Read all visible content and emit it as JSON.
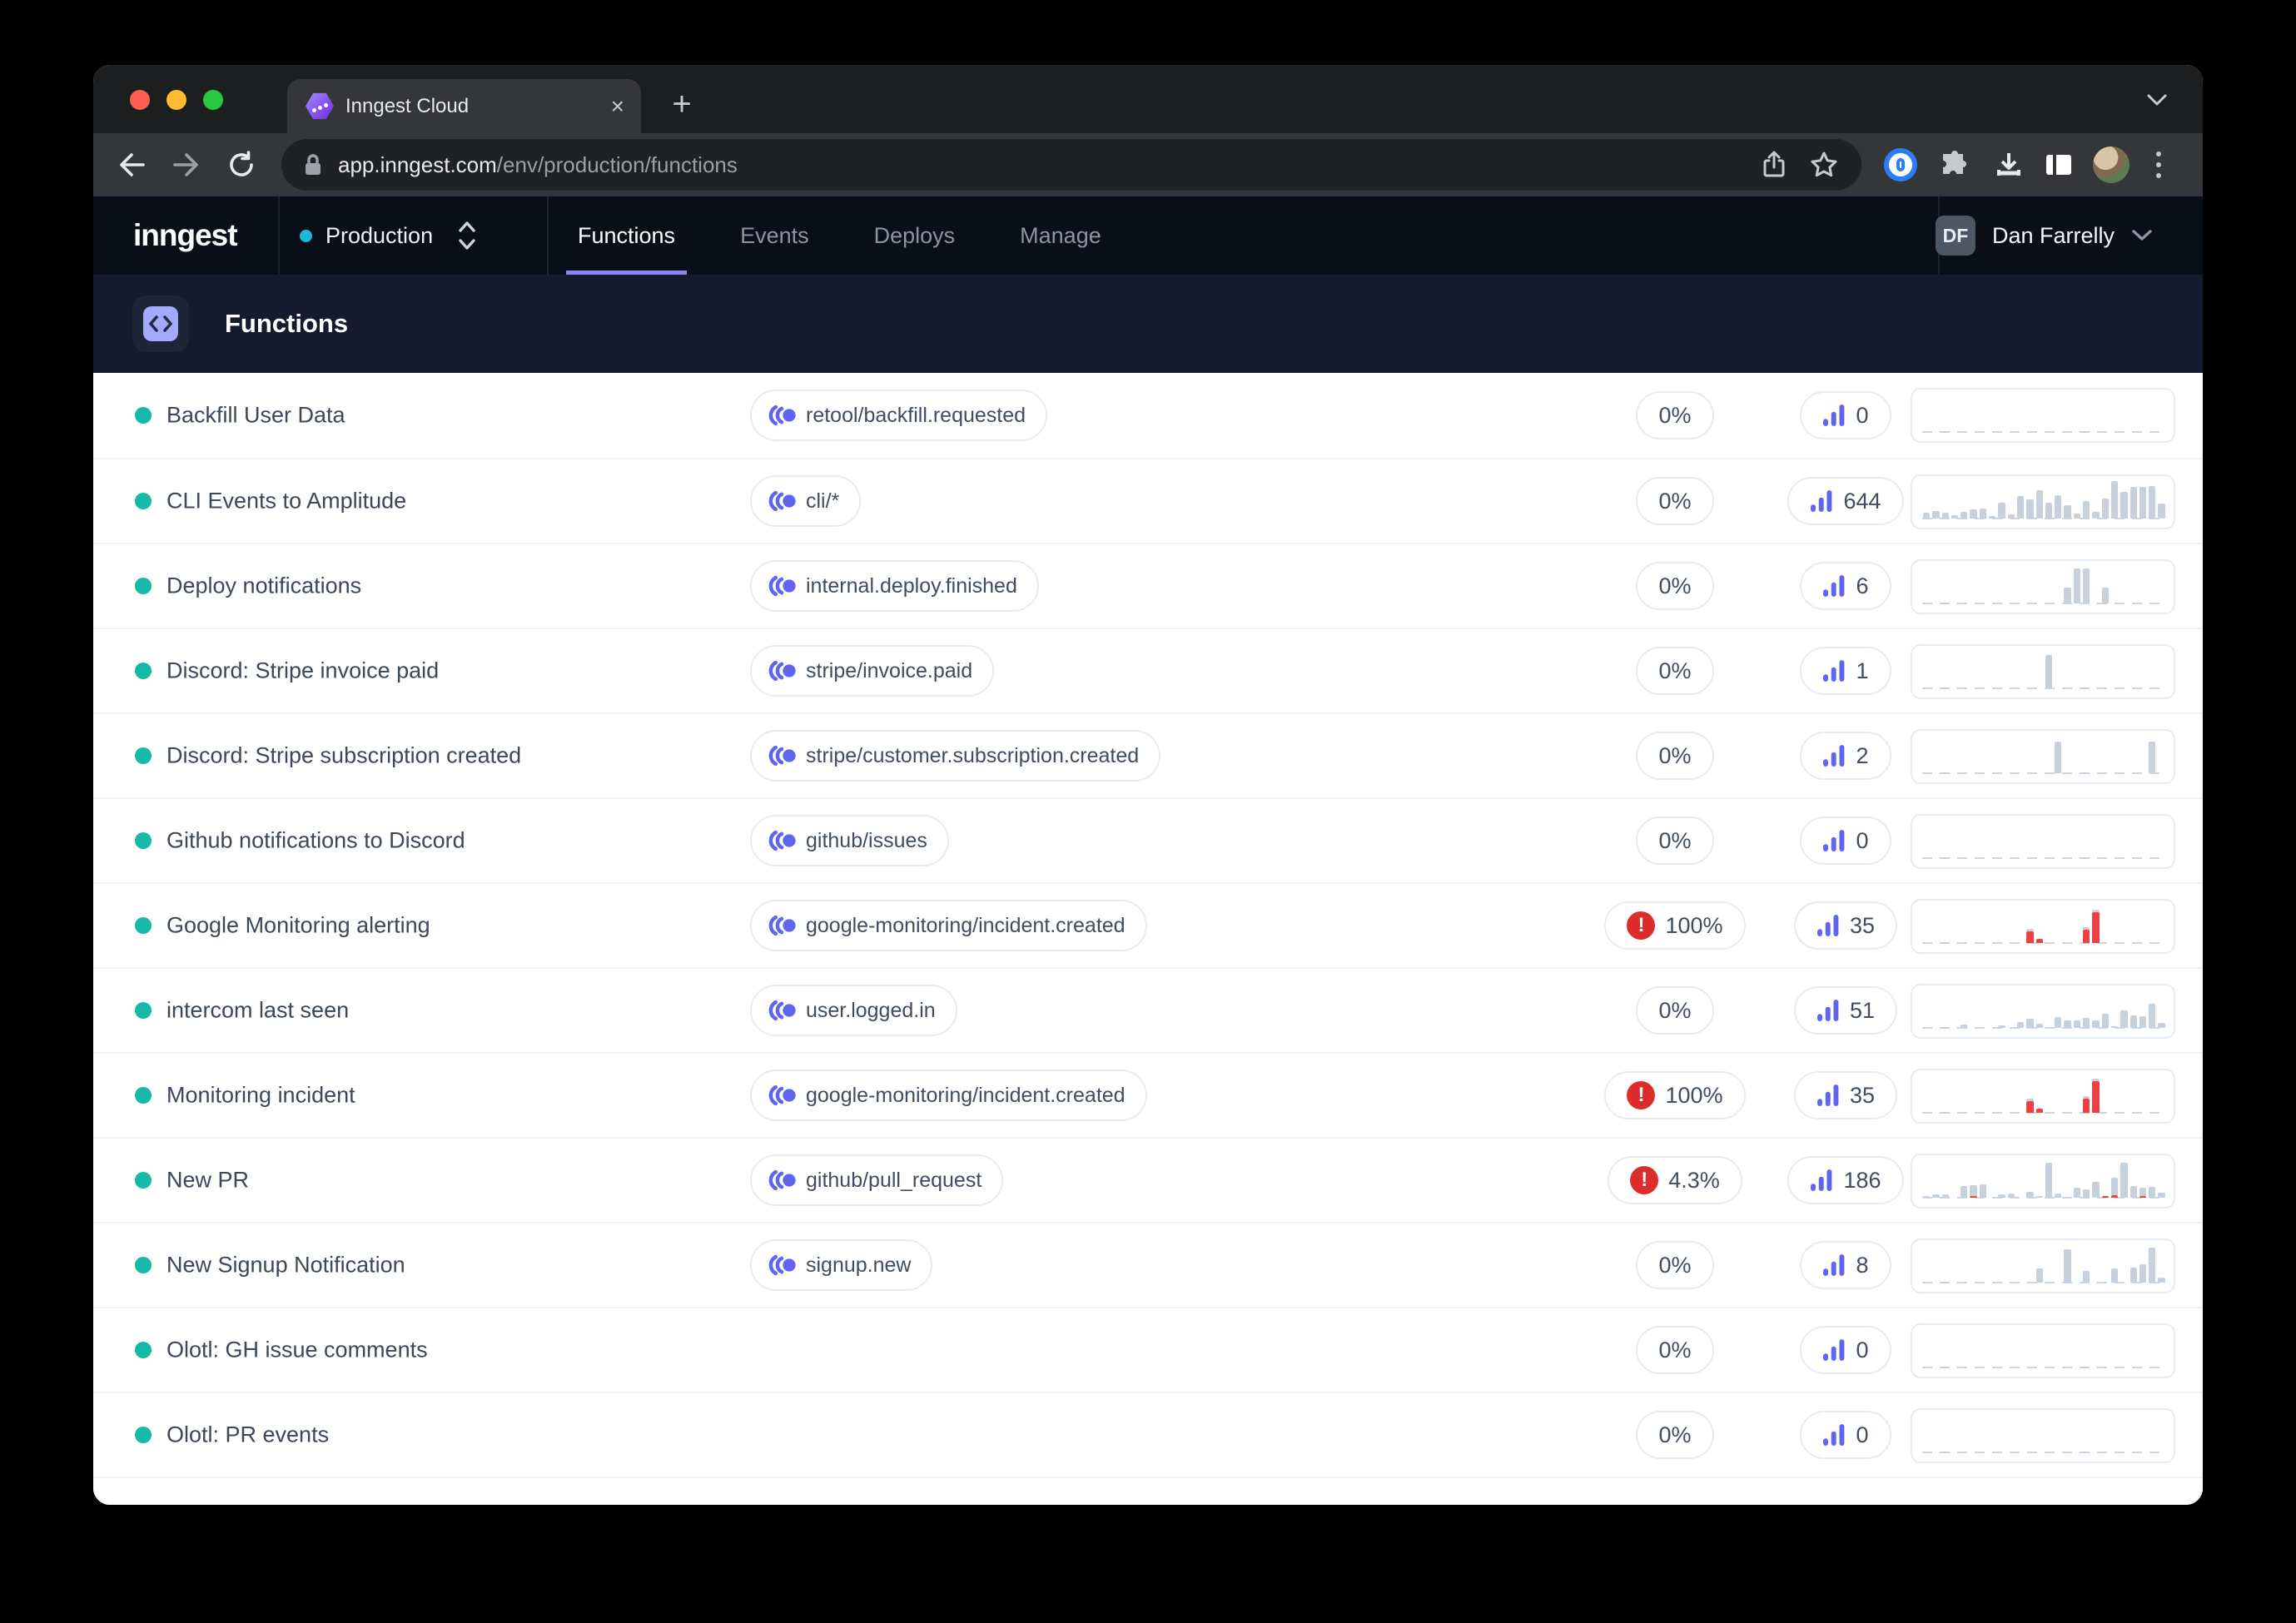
{
  "colors": {
    "teal": "#16b8a8",
    "cyan": "#1cb9d8",
    "indigo": "#6065ee",
    "red": "#dd2c2c",
    "underline": "#8a85f8",
    "bar-gray": "#c7d1de",
    "bar-red": "#ee4043"
  },
  "browser": {
    "tab_title": "Inngest Cloud",
    "url_host": "app.inngest.com",
    "url_path": "/env/production/functions"
  },
  "nav": {
    "logo": "inngest",
    "environment": "Production",
    "tabs": [
      {
        "label": "Functions",
        "active": true
      },
      {
        "label": "Events",
        "active": false
      },
      {
        "label": "Deploys",
        "active": false
      },
      {
        "label": "Manage",
        "active": false
      }
    ],
    "user": {
      "initials": "DF",
      "name": "Dan Farrelly"
    }
  },
  "page": {
    "title": "Functions"
  },
  "functions": [
    {
      "name": "Backfill User Data",
      "event": "retool/backfill.requested",
      "rate": "0%",
      "error": false,
      "count": "0",
      "spark": []
    },
    {
      "name": "CLI Events to Amplitude",
      "event": "cli/*",
      "rate": "0%",
      "error": false,
      "count": "644",
      "spark": [
        [
          "g",
          0.14
        ],
        [
          "g",
          0.17
        ],
        [
          "g",
          0.14
        ],
        [
          "g",
          0.07
        ],
        [
          "g",
          0.16
        ],
        [
          "g",
          0.2
        ],
        [
          "g",
          0.23
        ],
        [
          "g",
          0.06
        ],
        [
          "g",
          0.36
        ],
        [
          "g",
          0.09
        ],
        [
          "g",
          0.5
        ],
        [
          "g",
          0.44
        ],
        [
          "g",
          0.64
        ],
        [
          "g",
          0.36
        ],
        [
          "g",
          0.53
        ],
        [
          "g",
          0.3
        ],
        [
          "g",
          0.12
        ],
        [
          "g",
          0.4
        ],
        [
          "g",
          0.15
        ],
        [
          "g",
          0.45
        ],
        [
          "g",
          0.85
        ],
        [
          "g",
          0.6
        ],
        [
          "g",
          0.72
        ],
        [
          "g",
          0.72
        ],
        [
          "g",
          0.73
        ],
        [
          "g",
          0.34
        ]
      ]
    },
    {
      "name": "Deploy notifications",
      "event": "internal.deploy.finished",
      "rate": "0%",
      "error": false,
      "count": "6",
      "spark": [
        0,
        0,
        0,
        0,
        0,
        0,
        0,
        0,
        0,
        0,
        0,
        0,
        0,
        0,
        0,
        [
          "g",
          0.36
        ],
        [
          "g",
          0.8
        ],
        [
          "g",
          0.8
        ],
        0,
        [
          "g",
          0.36
        ],
        0,
        0,
        0,
        0,
        0,
        0
      ]
    },
    {
      "name": "Discord: Stripe invoice paid",
      "event": "stripe/invoice.paid",
      "rate": "0%",
      "error": false,
      "count": "1",
      "spark": [
        0,
        0,
        0,
        0,
        0,
        0,
        0,
        0,
        0,
        0,
        0,
        0,
        0,
        [
          "g",
          0.75
        ],
        0,
        0,
        0,
        0,
        0,
        0,
        0,
        0,
        0,
        0,
        0,
        0
      ]
    },
    {
      "name": "Discord: Stripe subscription created",
      "event": "stripe/customer.subscription.created",
      "rate": "0%",
      "error": false,
      "count": "2",
      "spark": [
        0,
        0,
        0,
        0,
        0,
        0,
        0,
        0,
        0,
        0,
        0,
        0,
        0,
        0,
        [
          "g",
          0.72
        ],
        0,
        0,
        0,
        0,
        0,
        0,
        0,
        0,
        0,
        [
          "g",
          0.72
        ],
        0
      ]
    },
    {
      "name": "Github notifications to Discord",
      "event": "github/issues",
      "rate": "0%",
      "error": false,
      "count": "0",
      "spark": []
    },
    {
      "name": "Google Monitoring alerting",
      "event": "google-monitoring/incident.created",
      "rate": "100%",
      "error": true,
      "count": "35",
      "spark": [
        0,
        0,
        0,
        0,
        0,
        0,
        0,
        0,
        0,
        0,
        0,
        [
          "r",
          0.26,
          "g",
          0.05
        ],
        [
          "r",
          0.09
        ],
        0,
        0,
        0,
        0,
        [
          "r",
          0.3,
          "g",
          0.05
        ],
        [
          "r",
          0.7,
          "g",
          0.05
        ],
        0,
        0,
        0,
        0,
        0,
        0,
        0
      ]
    },
    {
      "name": "intercom last seen",
      "event": "user.logged.in",
      "rate": "0%",
      "error": false,
      "count": "51",
      "spark": [
        0,
        0,
        0,
        0,
        [
          "g",
          0.07
        ],
        0,
        0,
        0,
        [
          "g",
          0.05
        ],
        0,
        [
          "g",
          0.14
        ],
        [
          "g",
          0.2
        ],
        [
          "g",
          0.09
        ],
        0,
        [
          "g",
          0.24
        ],
        [
          "g",
          0.17
        ],
        [
          "g",
          0.17
        ],
        [
          "g",
          0.22
        ],
        [
          "g",
          0.17
        ],
        [
          "g",
          0.33
        ],
        [
          "g",
          0.04
        ],
        [
          "g",
          0.4
        ],
        [
          "g",
          0.29
        ],
        [
          "g",
          0.27
        ],
        [
          "g",
          0.55
        ],
        [
          "g",
          0.12
        ]
      ]
    },
    {
      "name": "Monitoring incident",
      "event": "google-monitoring/incident.created",
      "rate": "100%",
      "error": true,
      "count": "35",
      "spark": [
        0,
        0,
        0,
        0,
        0,
        0,
        0,
        0,
        0,
        0,
        0,
        [
          "r",
          0.26,
          "g",
          0.05
        ],
        [
          "r",
          0.09
        ],
        0,
        0,
        0,
        0,
        [
          "r",
          0.32,
          "g",
          0.05
        ],
        [
          "r",
          0.72,
          "g",
          0.05
        ],
        0,
        0,
        0,
        0,
        0,
        0,
        0
      ]
    },
    {
      "name": "New PR",
      "event": "github/pull_request",
      "rate": "4.3%",
      "error": true,
      "count": "186",
      "spark": [
        [
          "g",
          0.04
        ],
        [
          "g",
          0.08
        ],
        [
          "g",
          0.08
        ],
        0,
        [
          "g",
          0.26
        ],
        [
          "r",
          0.04,
          "g",
          0.24
        ],
        [
          "g",
          0.3
        ],
        0,
        [
          "g",
          0.07
        ],
        [
          "g",
          0.09
        ],
        0,
        [
          "g",
          0.13
        ],
        [
          "g",
          0.04
        ],
        [
          "g",
          0.8
        ],
        [
          "g",
          0.09
        ],
        0,
        [
          "g",
          0.22
        ],
        [
          "g",
          0.19
        ],
        [
          "g",
          0.36
        ],
        [
          "r",
          0.04
        ],
        [
          "r",
          0.05,
          "g",
          0.4
        ],
        [
          "g",
          0.8
        ],
        [
          "g",
          0.26
        ],
        [
          "r",
          0.04,
          "g",
          0.18
        ],
        [
          "g",
          0.24
        ],
        [
          "g",
          0.12
        ]
      ]
    },
    {
      "name": "New Signup Notification",
      "event": "signup.new",
      "rate": "0%",
      "error": false,
      "count": "8",
      "spark": [
        0,
        0,
        0,
        0,
        0,
        0,
        0,
        0,
        0,
        0,
        0,
        0,
        [
          "g",
          0.33
        ],
        0,
        0,
        [
          "g",
          0.75
        ],
        0,
        [
          "g",
          0.27
        ],
        0,
        0,
        [
          "g",
          0.32
        ],
        0,
        [
          "g",
          0.34
        ],
        [
          "g",
          0.42
        ],
        [
          "g",
          0.8
        ],
        [
          "g",
          0.12
        ]
      ]
    },
    {
      "name": "Olotl: GH issue comments",
      "event": null,
      "rate": "0%",
      "error": false,
      "count": "0",
      "spark": []
    },
    {
      "name": "Olotl: PR events",
      "event": null,
      "rate": "0%",
      "error": false,
      "count": "0",
      "spark": []
    }
  ]
}
